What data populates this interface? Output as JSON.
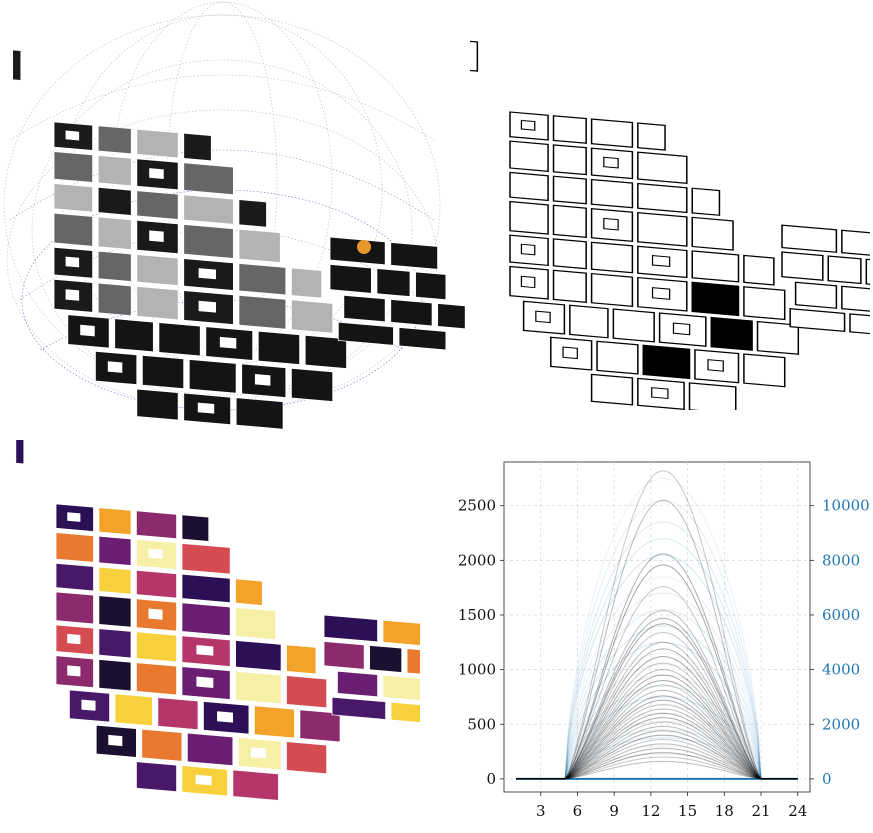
{
  "colors": {
    "left_series": "#000000",
    "right_series": "#1f77b4",
    "right_axis_text": "#1f77b4",
    "sun_marker": "#e8962a",
    "magma": [
      "#2b1055",
      "#4a1869",
      "#6a1e72",
      "#8c2a6e",
      "#b5366a",
      "#d44b52",
      "#e8792f",
      "#f3a32a",
      "#f7d13d",
      "#f6f0a6",
      "#1c1030"
    ]
  },
  "panels": {
    "sun_path_map": {
      "description_icon": "sun-path-dome-icon"
    },
    "outline_map": {
      "description_icon": "building-outline-icon"
    },
    "magma_map": {
      "description_icon": "building-heatmap-icon"
    }
  },
  "chart_data": {
    "type": "line",
    "x_ticks": [
      3,
      6,
      9,
      12,
      15,
      18,
      21,
      24
    ],
    "y_ticks_left": [
      0,
      500,
      1000,
      1500,
      2000,
      2500
    ],
    "y_ticks_right": [
      0,
      2000,
      4000,
      6000,
      8000,
      10000
    ],
    "xlim": [
      0,
      25
    ],
    "ylim_left": [
      -120,
      2900
    ],
    "ylim_right": [
      -480,
      11600
    ],
    "grid": true,
    "left_axis_peaks": [
      2820,
      2550,
      2060,
      1960,
      1760,
      1540,
      1470,
      1420,
      1340,
      1250,
      1190,
      1120,
      1060,
      1000,
      950,
      900,
      860,
      810,
      760,
      720,
      680,
      640,
      600,
      560,
      520,
      480,
      440,
      400,
      360,
      320,
      280,
      240,
      200,
      160
    ],
    "right_axis_peaks": [
      11000,
      10200,
      9400,
      8800,
      8200,
      7400,
      6800,
      6200,
      5600,
      5000,
      4600,
      4200,
      3800,
      3400,
      3000,
      2700,
      2400,
      2100,
      1800,
      1500,
      1200,
      900
    ],
    "x_start": 1,
    "x_end": 24,
    "rise_hour": 6,
    "set_hour": 20,
    "peak_hour": 13
  }
}
